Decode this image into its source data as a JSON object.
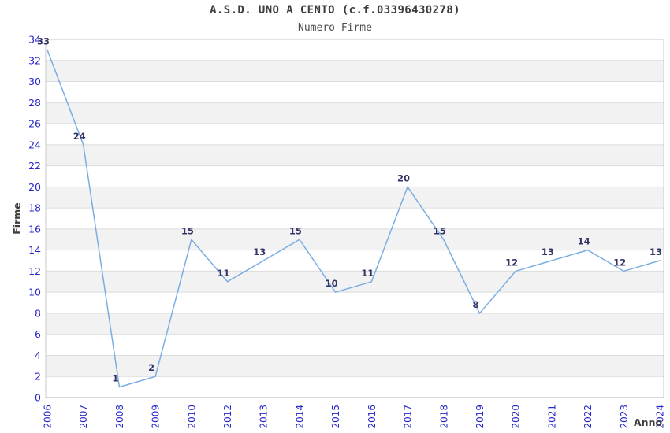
{
  "chart_data": {
    "type": "line",
    "title": "A.S.D. UNO A CENTO (c.f.03396430278)",
    "subtitle": "Numero Firme",
    "xlabel": "Anno",
    "ylabel": "Firme",
    "categories": [
      "2006",
      "2007",
      "2008",
      "2009",
      "2010",
      "2012",
      "2013",
      "2014",
      "2015",
      "2016",
      "2017",
      "2018",
      "2019",
      "2020",
      "2021",
      "2022",
      "2023",
      "2024"
    ],
    "values": [
      33,
      24,
      1,
      2,
      15,
      11,
      13,
      15,
      10,
      11,
      20,
      15,
      8,
      12,
      13,
      14,
      12,
      13
    ],
    "ylim": [
      0,
      34
    ],
    "ytick_step": 2,
    "grid": true,
    "legend": "none",
    "band_fill": "alternating",
    "colors": {
      "line": "#7aade3",
      "data_label": "#333366",
      "tick_label": "#2626cc",
      "axis_title": "#3c3c3c",
      "title": "#3c3c3c",
      "subtitle": "#4d4d4d",
      "band": "#f2f2f2",
      "gridline": "#dcdcdc",
      "border": "#c9c9c9",
      "axis_line": "#b3b3b3",
      "background": "#ffffff"
    }
  }
}
